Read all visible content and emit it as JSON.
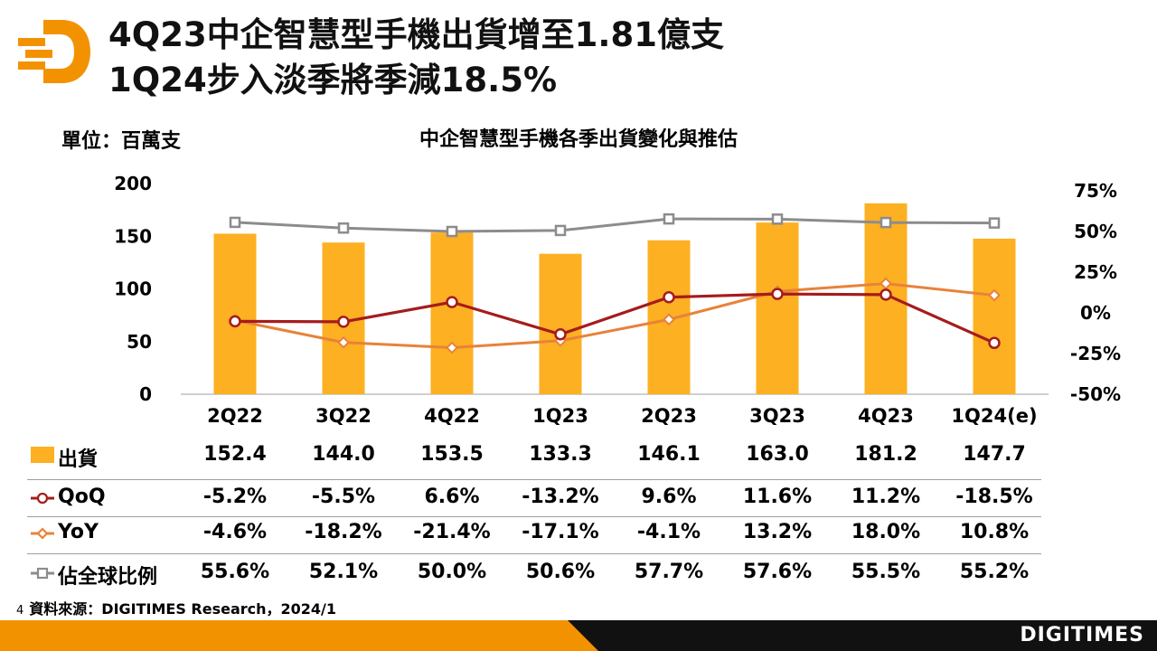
{
  "header": {
    "title_line1": "4Q23中企智慧型手機出貨增至1.81億支",
    "title_line2": "1Q24步入淡季將季減18.5%",
    "logo_icon": "digitimes-d-logo-icon"
  },
  "unit_label": "單位：百萬支",
  "chart_data": {
    "type": "bar",
    "title": "中企智慧型手機各季出貨變化與推估",
    "categories": [
      "2Q22",
      "3Q22",
      "4Q22",
      "1Q23",
      "2Q23",
      "3Q23",
      "4Q23",
      "1Q24(e)"
    ],
    "left_axis": {
      "ylim": [
        0,
        200
      ],
      "ticks": [
        "200",
        "150",
        "100",
        "50",
        "0"
      ]
    },
    "right_axis": {
      "ylim": [
        -50,
        75
      ],
      "ticks": [
        "75%",
        "50%",
        "25%",
        "0%",
        "-25%",
        "-50%"
      ]
    },
    "series": [
      {
        "name": "出貨",
        "type": "bar",
        "axis": "left",
        "color": "#FDB022",
        "values": [
          152.4,
          144.0,
          153.5,
          133.3,
          146.1,
          163.0,
          181.2,
          147.7
        ],
        "labels": [
          "152.4",
          "144.0",
          "153.5",
          "133.3",
          "146.1",
          "163.0",
          "181.2",
          "147.7"
        ]
      },
      {
        "name": "QoQ",
        "type": "line",
        "axis": "right",
        "color": "#A51C1C",
        "marker": "circle",
        "values": [
          -5.2,
          -5.5,
          6.6,
          -13.2,
          9.6,
          11.6,
          11.2,
          -18.5
        ],
        "labels": [
          "-5.2%",
          "-5.5%",
          "6.6%",
          "-13.2%",
          "9.6%",
          "11.6%",
          "11.2%",
          "-18.5%"
        ]
      },
      {
        "name": "YoY",
        "type": "line",
        "axis": "right",
        "color": "#E8823A",
        "marker": "diamond",
        "values": [
          -4.6,
          -18.2,
          -21.4,
          -17.1,
          -4.1,
          13.2,
          18.0,
          10.8
        ],
        "labels": [
          "-4.6%",
          "-18.2%",
          "-21.4%",
          "-17.1%",
          "-4.1%",
          "13.2%",
          "18.0%",
          "10.8%"
        ]
      },
      {
        "name": "佔全球比例",
        "type": "line",
        "axis": "right",
        "color": "#8C8C8C",
        "marker": "square",
        "values": [
          55.6,
          52.1,
          50.0,
          50.6,
          57.7,
          57.6,
          55.5,
          55.2
        ],
        "labels": [
          "55.6%",
          "52.1%",
          "50.0%",
          "50.6%",
          "57.7%",
          "57.6%",
          "55.5%",
          "55.2%"
        ]
      }
    ]
  },
  "footer": {
    "page_number": "4",
    "source": "資料來源：DIGITIMES Research，2024/1",
    "brand": "DIGITIMES",
    "bar_colors": [
      "#F39200",
      "#111111"
    ]
  }
}
